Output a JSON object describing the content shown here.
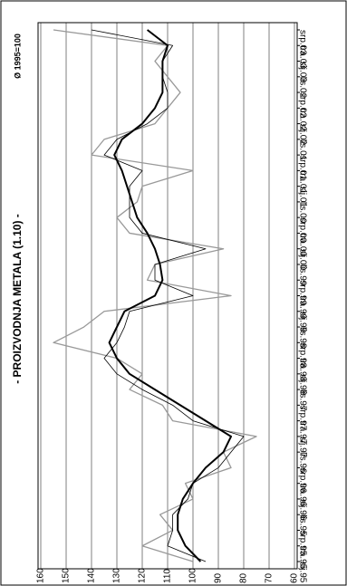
{
  "chart_data": {
    "type": "line",
    "orientation": "rotated",
    "title": "- PROIZVODNJA METALA (1.10) -",
    "subtitle": "Ø 1995=100",
    "categories": [
      "sij.95",
      "tra.95",
      "srp.95",
      "lis.95",
      "sij.96",
      "tra.96",
      "srp.96",
      "lis.96",
      "sij.97",
      "tra.97",
      "srp.97",
      "lis.97",
      "sij.98",
      "tra.98",
      "srp.98",
      "lis.98",
      "sij.99",
      "tra.99",
      "srp.99",
      "lis.99",
      "sij.00",
      "tra.00",
      "srp.00",
      "lis.00",
      "sij.01",
      "tra.01",
      "srp.01",
      "lis.01",
      "sij.02",
      "tra.02",
      "srp.02",
      "lis.02",
      "sij.03",
      "tra.03",
      "srp.03"
    ],
    "series": [
      {
        "color": "#999999",
        "width": 1.3,
        "values": [
          100,
          120,
          108,
          113,
          100,
          103,
          85,
          88,
          75,
          108,
          112,
          125,
          120,
          130,
          155,
          143,
          135,
          85,
          118,
          115,
          88,
          125,
          130,
          122,
          120,
          100,
          140,
          135,
          115,
          110,
          105,
          110,
          115,
          110,
          155
        ]
      },
      {
        "color": "#000000",
        "width": 0.8,
        "values": [
          95,
          110,
          108,
          108,
          102,
          100,
          90,
          85,
          80,
          100,
          108,
          120,
          130,
          135,
          130,
          127,
          125,
          100,
          115,
          115,
          95,
          120,
          125,
          125,
          125,
          120,
          135,
          130,
          118,
          110,
          110,
          112,
          112,
          108,
          140
        ]
      },
      {
        "color": "#000000",
        "width": 2,
        "values": [
          97,
          103,
          106,
          106,
          104,
          100,
          95,
          88,
          85,
          95,
          105,
          115,
          125,
          130,
          133,
          130,
          127,
          115,
          112,
          113,
          115,
          118,
          122,
          124,
          126,
          128,
          131,
          128,
          120,
          115,
          112,
          112,
          112,
          110,
          118
        ]
      }
    ],
    "ylim": [
      160,
      60
    ],
    "yticks": [
      160,
      150,
      140,
      130,
      120,
      110,
      100,
      90,
      80,
      70,
      60
    ],
    "grid": true
  }
}
